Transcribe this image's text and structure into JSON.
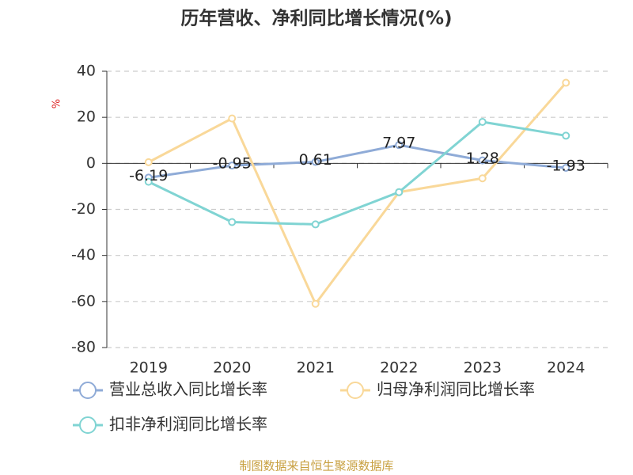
{
  "chart_data": {
    "type": "line",
    "title": "历年营收、净利同比增长情况(%)",
    "y_label": "%",
    "categories": [
      "2019",
      "2020",
      "2021",
      "2022",
      "2023",
      "2024"
    ],
    "series": [
      {
        "name": "营业总收入同比增长率",
        "color": "#8fabd7",
        "values": [
          -6.19,
          -0.95,
          0.61,
          7.97,
          1.28,
          -1.93
        ],
        "show_labels": true
      },
      {
        "name": "归母净利润同比增长率",
        "color": "#f9d899",
        "values": [
          0.5,
          19.5,
          -61,
          -12.5,
          -6.5,
          35
        ]
      },
      {
        "name": "扣非净利润同比增长率",
        "color": "#80d4d3",
        "values": [
          -8,
          -25.5,
          -26.5,
          -12.5,
          18,
          12
        ]
      }
    ],
    "ylim": [
      -80,
      40
    ],
    "yticks": [
      40,
      20,
      0,
      -20,
      -40,
      -60,
      -80
    ],
    "grid": true,
    "source": "制图数据来自恒生聚源数据库"
  }
}
